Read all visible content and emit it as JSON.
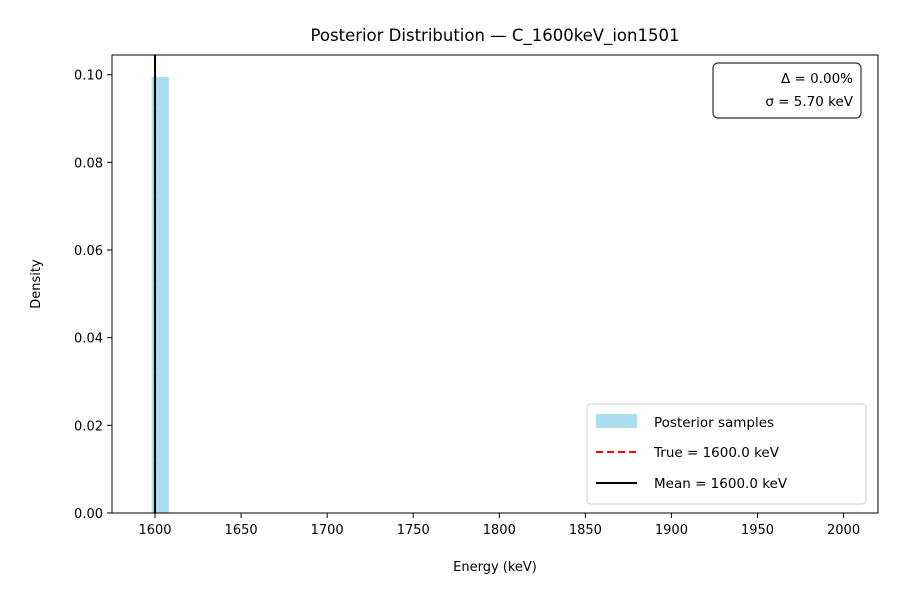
{
  "chart_data": {
    "type": "bar",
    "title": "Posterior Distribution — C_1600keV_ion1501",
    "xlabel": "Energy (keV)",
    "ylabel": "Density",
    "xlim": [
      1575,
      2020
    ],
    "ylim": [
      0,
      0.1045
    ],
    "xticks": [
      1600,
      1650,
      1700,
      1750,
      1800,
      1850,
      1900,
      1950,
      2000
    ],
    "xtick_labels": [
      "1600",
      "1650",
      "1700",
      "1750",
      "1800",
      "1850",
      "1900",
      "1950",
      "2000"
    ],
    "yticks": [
      0,
      0.02,
      0.04,
      0.06,
      0.08,
      0.1
    ],
    "ytick_labels": [
      "0.00",
      "0.02",
      "0.04",
      "0.06",
      "0.08",
      "0.10"
    ],
    "histogram": {
      "bins": [
        [
          1598,
          1608
        ]
      ],
      "density": [
        0.0995
      ],
      "color": "#87ceeb"
    },
    "true_value": 1600.0,
    "mean_value": 1600.0,
    "annotation": [
      "Δ = 0.00%",
      "σ = 5.70 keV"
    ],
    "legend": {
      "position": "lower-right",
      "entries": [
        {
          "label": "Posterior samples",
          "style": "patch",
          "color": "#87ceeb"
        },
        {
          "label": "True = 1600.0 keV",
          "style": "dashed",
          "color": "#ff0000"
        },
        {
          "label": "Mean = 1600.0 keV",
          "style": "solid",
          "color": "#000000"
        }
      ]
    },
    "grid": false
  }
}
